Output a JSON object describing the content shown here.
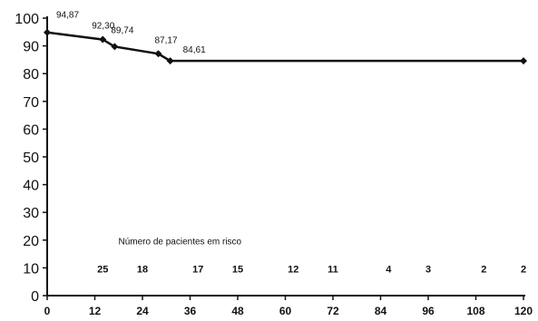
{
  "chart_data": {
    "type": "line",
    "title": "",
    "xlabel": "",
    "ylabel": "",
    "xlim": [
      0,
      120
    ],
    "ylim": [
      0,
      100
    ],
    "x_ticks": [
      "0",
      "12",
      "24",
      "36",
      "48",
      "60",
      "72",
      "84",
      "96",
      "108",
      "120"
    ],
    "y_ticks": [
      "0",
      "10",
      "20",
      "30",
      "40",
      "50",
      "60",
      "70",
      "80",
      "90",
      "100"
    ],
    "grid": false,
    "legend": "none",
    "series": [
      {
        "color": "#111111",
        "points": [
          {
            "x": 0,
            "y": 94.87
          },
          {
            "x": 14,
            "y": 92.3
          },
          {
            "x": 17,
            "y": 89.74
          },
          {
            "x": 28,
            "y": 87.17
          },
          {
            "x": 31,
            "y": 84.61
          },
          {
            "x": 120,
            "y": 84.61
          }
        ]
      }
    ],
    "point_labels": [
      {
        "x": 0,
        "y": 94.87,
        "text": "94,87"
      },
      {
        "x": 14,
        "y": 92.3,
        "text": "92,30"
      },
      {
        "x": 17,
        "y": 89.74,
        "text": "89,74"
      },
      {
        "x": 28,
        "y": 87.17,
        "text": "87,17"
      },
      {
        "x": 31,
        "y": 84.61,
        "text": "84,61"
      }
    ],
    "risk_table": {
      "caption": "Número de pacientes em risco",
      "entries": [
        {
          "x": 14,
          "count": "25"
        },
        {
          "x": 24,
          "count": "18"
        },
        {
          "x": 38,
          "count": "17"
        },
        {
          "x": 48,
          "count": "15"
        },
        {
          "x": 62,
          "count": "12"
        },
        {
          "x": 72,
          "count": "11"
        },
        {
          "x": 86,
          "count": "4"
        },
        {
          "x": 96,
          "count": "3"
        },
        {
          "x": 110,
          "count": "2"
        },
        {
          "x": 120,
          "count": "2"
        }
      ]
    }
  }
}
